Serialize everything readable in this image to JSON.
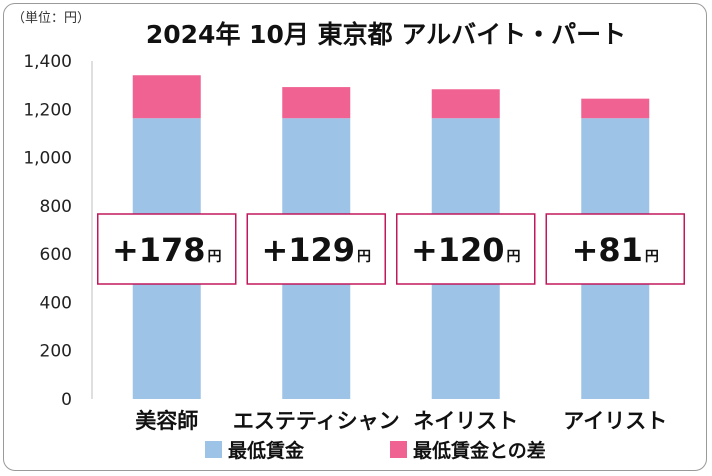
{
  "unit_label": "（単位：円）",
  "chart_data": {
    "type": "bar",
    "stacked": true,
    "title": "2024年 10月  東京都  アルバイト・パート",
    "categories": [
      "美容師",
      "エステティシャン",
      "ネイリスト",
      "アイリスト"
    ],
    "series": [
      {
        "name": "最低賃金",
        "values": [
          1163,
          1163,
          1163,
          1163
        ],
        "color": "#9dc3e6"
      },
      {
        "name": "最低賃金との差",
        "values": [
          178,
          129,
          120,
          81
        ],
        "color": "#f06292"
      }
    ],
    "data_labels": [
      "+178",
      "+129",
      "+120",
      "+81"
    ],
    "data_label_unit": "円",
    "yticks": [
      "0",
      "200",
      "400",
      "600",
      "800",
      "1,000",
      "1,200",
      "1,400"
    ],
    "ylim": [
      0,
      1400
    ],
    "grid": false,
    "legend_position": "bottom",
    "label_box_color": "#c2185b"
  }
}
